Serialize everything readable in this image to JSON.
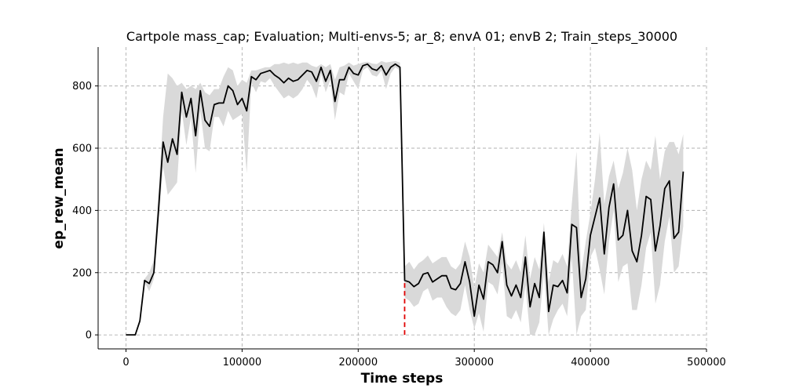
{
  "chart_data": {
    "type": "line",
    "title": "Cartpole mass_cap; Evaluation; Multi-envs-5; ar_8; envA 01; envB 2; Train_steps_30000",
    "xlabel": "Time steps",
    "ylabel": "ep_rew_mean",
    "xlim": [
      -24000,
      500000
    ],
    "ylim": [
      -45,
      925
    ],
    "x_ticks": [
      0,
      100000,
      200000,
      300000,
      400000,
      500000
    ],
    "x_tick_labels": [
      "0",
      "100000",
      "200000",
      "300000",
      "400000",
      "500000"
    ],
    "y_ticks": [
      0,
      200,
      400,
      600,
      800
    ],
    "y_tick_labels": [
      "0",
      "200",
      "400",
      "600",
      "800"
    ],
    "grid": true,
    "vline": {
      "x": 240000,
      "color": "#e00000",
      "style": "dashed"
    },
    "series": [
      {
        "line_color": "#000000",
        "band_color": "#d9d9d9",
        "x": [
          0,
          4000,
          8000,
          12000,
          16000,
          20000,
          24000,
          28000,
          32000,
          36000,
          40000,
          44000,
          48000,
          52000,
          56000,
          60000,
          64000,
          68000,
          72000,
          76000,
          80000,
          84000,
          88000,
          92000,
          96000,
          100000,
          104000,
          108000,
          112000,
          116000,
          120000,
          124000,
          128000,
          132000,
          136000,
          140000,
          144000,
          148000,
          152000,
          156000,
          160000,
          164000,
          168000,
          172000,
          176000,
          180000,
          184000,
          188000,
          192000,
          196000,
          200000,
          204000,
          208000,
          212000,
          216000,
          220000,
          224000,
          228000,
          232000,
          236000,
          240000,
          244000,
          248000,
          252000,
          256000,
          260000,
          264000,
          268000,
          272000,
          276000,
          280000,
          284000,
          288000,
          292000,
          296000,
          300000,
          304000,
          308000,
          312000,
          316000,
          320000,
          324000,
          328000,
          332000,
          336000,
          340000,
          344000,
          348000,
          352000,
          356000,
          360000,
          364000,
          368000,
          372000,
          376000,
          380000,
          384000,
          388000,
          392000,
          396000,
          400000,
          404000,
          408000,
          412000,
          416000,
          420000,
          424000,
          428000,
          432000,
          436000,
          440000,
          444000,
          448000,
          452000,
          456000,
          460000,
          464000,
          468000,
          472000,
          476000,
          480000
        ],
        "mean": [
          0,
          0,
          0,
          45,
          175,
          165,
          200,
          400,
          620,
          555,
          630,
          580,
          780,
          700,
          760,
          640,
          785,
          690,
          670,
          740,
          745,
          745,
          800,
          785,
          740,
          760,
          720,
          830,
          820,
          840,
          845,
          850,
          835,
          825,
          810,
          825,
          815,
          820,
          835,
          850,
          845,
          815,
          860,
          815,
          850,
          750,
          820,
          820,
          860,
          840,
          835,
          865,
          870,
          855,
          850,
          865,
          835,
          860,
          870,
          860,
          175,
          170,
          155,
          165,
          195,
          200,
          170,
          180,
          190,
          190,
          150,
          145,
          165,
          235,
          170,
          60,
          160,
          115,
          235,
          225,
          200,
          300,
          160,
          125,
          160,
          120,
          250,
          90,
          165,
          120,
          330,
          75,
          160,
          155,
          175,
          135,
          355,
          345,
          120,
          180,
          320,
          380,
          440,
          260,
          410,
          485,
          305,
          320,
          400,
          270,
          235,
          320,
          445,
          435,
          270,
          350,
          470,
          495,
          310,
          330,
          525
        ],
        "upper": [
          0,
          0,
          0,
          50,
          180,
          200,
          240,
          460,
          700,
          840,
          825,
          800,
          810,
          790,
          800,
          790,
          810,
          780,
          770,
          790,
          790,
          830,
          860,
          850,
          800,
          820,
          810,
          850,
          850,
          855,
          860,
          860,
          870,
          870,
          875,
          870,
          875,
          870,
          875,
          875,
          865,
          860,
          870,
          860,
          870,
          820,
          860,
          865,
          875,
          865,
          870,
          875,
          878,
          872,
          870,
          880,
          875,
          878,
          880,
          875,
          220,
          235,
          210,
          230,
          240,
          255,
          230,
          240,
          250,
          250,
          220,
          210,
          230,
          300,
          250,
          150,
          230,
          200,
          290,
          270,
          250,
          330,
          230,
          210,
          240,
          200,
          320,
          180,
          250,
          210,
          360,
          170,
          240,
          230,
          260,
          220,
          420,
          590,
          200,
          300,
          390,
          500,
          650,
          420,
          510,
          560,
          470,
          520,
          600,
          530,
          400,
          500,
          560,
          530,
          640,
          500,
          590,
          620,
          620,
          580,
          645
        ],
        "lower": [
          0,
          0,
          0,
          40,
          170,
          140,
          180,
          360,
          540,
          450,
          470,
          490,
          720,
          610,
          700,
          520,
          720,
          600,
          590,
          700,
          700,
          670,
          720,
          690,
          700,
          710,
          520,
          810,
          780,
          815,
          810,
          825,
          800,
          780,
          760,
          770,
          760,
          770,
          790,
          820,
          800,
          760,
          840,
          780,
          820,
          690,
          780,
          770,
          840,
          815,
          790,
          850,
          860,
          835,
          830,
          850,
          790,
          840,
          860,
          850,
          120,
          110,
          90,
          100,
          140,
          150,
          110,
          120,
          120,
          90,
          70,
          60,
          80,
          160,
          80,
          20,
          70,
          10,
          170,
          160,
          130,
          230,
          60,
          50,
          80,
          40,
          160,
          0,
          0,
          40,
          200,
          0,
          50,
          80,
          100,
          60,
          250,
          0,
          60,
          80,
          250,
          280,
          210,
          130,
          300,
          400,
          170,
          220,
          230,
          80,
          80,
          160,
          280,
          330,
          100,
          160,
          300,
          380,
          200,
          220,
          350
        ]
      }
    ]
  }
}
